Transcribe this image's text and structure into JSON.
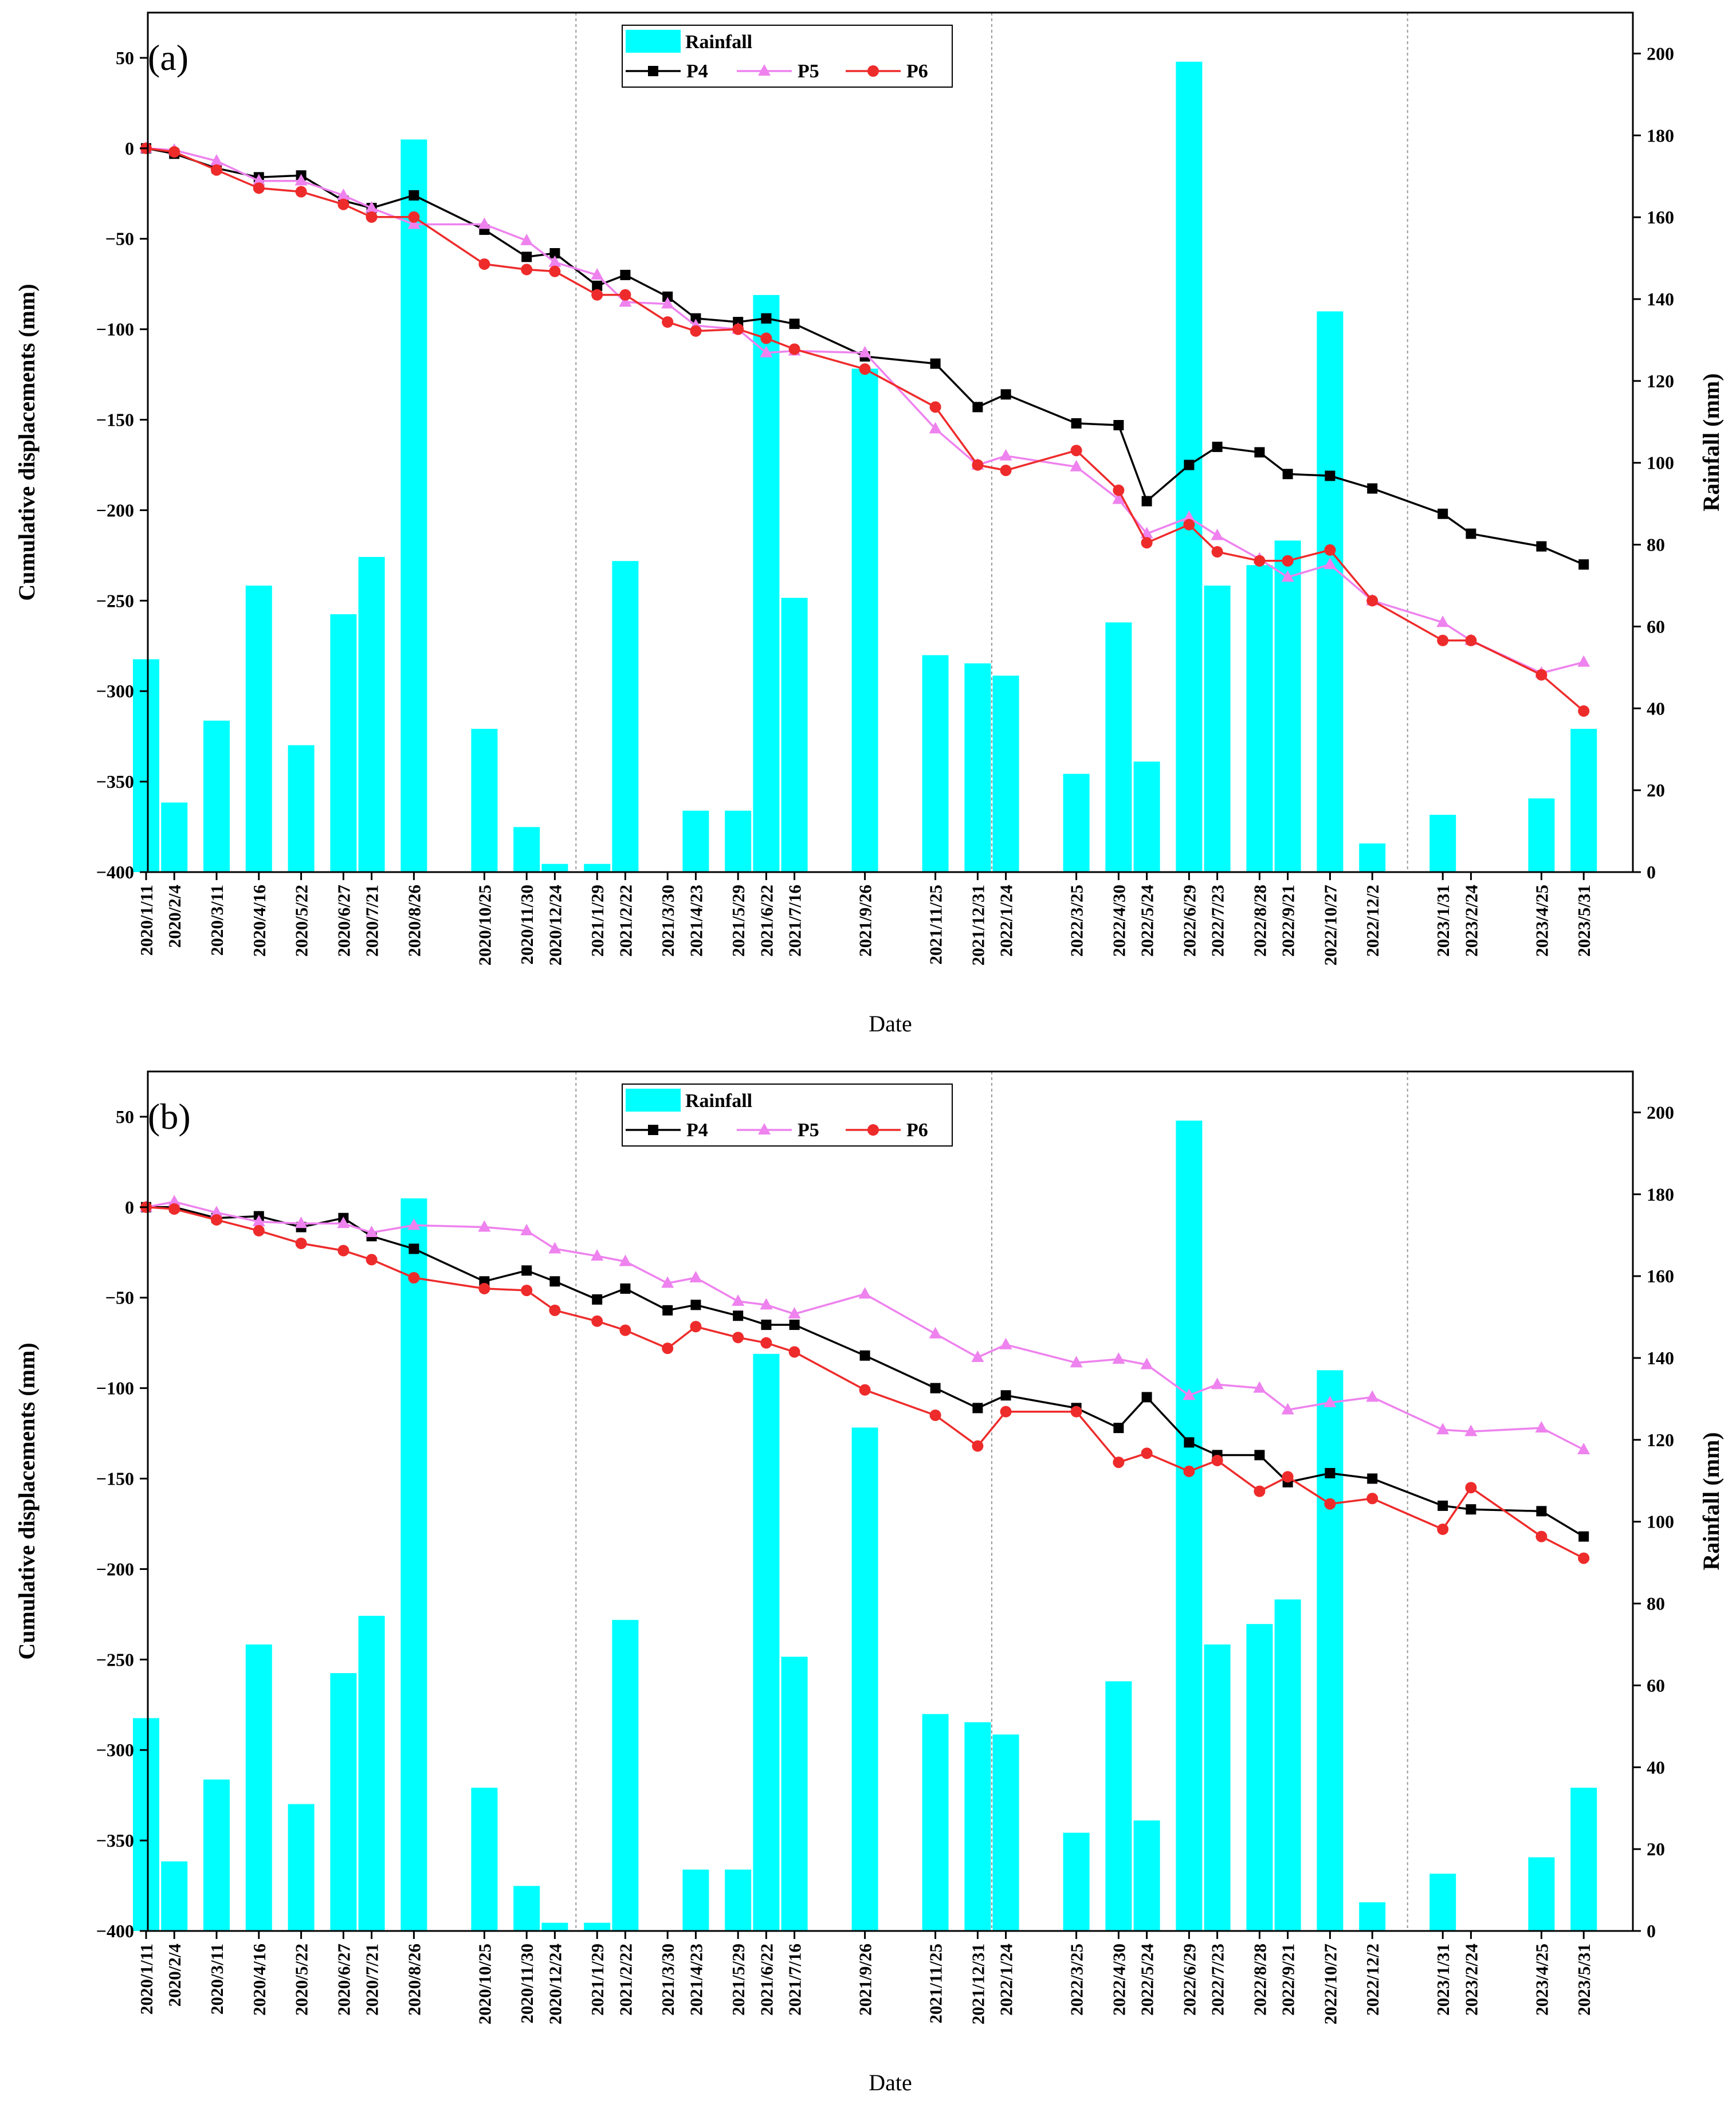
{
  "chart_data": [
    {
      "type": "bar+line",
      "panel_label": "(a)",
      "xlabel": "Date",
      "ylabel_left": "Cumulative displacements (mm)",
      "ylabel_right": "Rainfall (mm)",
      "ylim_left": [
        -400,
        75
      ],
      "ylim_right": [
        0,
        210
      ],
      "yticks_left": [
        50,
        0,
        -50,
        -100,
        -150,
        -200,
        -250,
        -300,
        -350,
        -400
      ],
      "yticks_right": [
        200,
        180,
        160,
        140,
        120,
        100,
        80,
        60,
        40,
        20,
        0
      ],
      "dates": [
        "2020/1/11",
        "2020/2/4",
        "2020/3/11",
        "2020/4/16",
        "2020/5/22",
        "2020/6/27",
        "2020/7/21",
        "2020/8/26",
        "2020/10/25",
        "2020/11/30",
        "2020/12/24",
        "2021/1/29",
        "2021/2/22",
        "2021/3/30",
        "2021/4/23",
        "2021/5/29",
        "2021/6/22",
        "2021/7/16",
        "2021/9/26",
        "2021/11/25",
        "2021/12/31",
        "2022/1/24",
        "2022/3/25",
        "2022/4/30",
        "2022/5/24",
        "2022/6/29",
        "2022/7/23",
        "2022/8/28",
        "2022/9/21",
        "2022/10/27",
        "2022/12/2",
        "2023/1/31",
        "2023/2/24",
        "2023/4/25",
        "2023/5/31"
      ],
      "date_positions": [
        0,
        1,
        2.5,
        4,
        5.5,
        7,
        8,
        9.5,
        12,
        13.5,
        14.5,
        16,
        17,
        18.5,
        19.5,
        21,
        22,
        23,
        25.5,
        28,
        29.5,
        30.5,
        33,
        34.5,
        35.5,
        37,
        38,
        39.5,
        40.5,
        42,
        43.5,
        46,
        47,
        49.5,
        51
      ],
      "rainfall": [
        52,
        17,
        37,
        70,
        31,
        63,
        77,
        179,
        35,
        11,
        2,
        2,
        76,
        0,
        15,
        15,
        141,
        67,
        123,
        53,
        51,
        48,
        24,
        61,
        27,
        198,
        70,
        75,
        81,
        137,
        7,
        14,
        0,
        18,
        35
      ],
      "separators": [
        15.25,
        30,
        44.75
      ],
      "series": [
        {
          "name": "P4",
          "color": "#000000",
          "marker": "square",
          "values": [
            0,
            -3,
            -11,
            -16,
            -15,
            -29,
            -33,
            -26,
            -45,
            -60,
            -58,
            -76,
            -70,
            -82,
            -94,
            -96,
            -94,
            -97,
            -115,
            -119,
            -143,
            -136,
            -152,
            -153,
            -195,
            -175,
            -165,
            -168,
            -180,
            -181,
            -188,
            -202,
            -213,
            -220,
            -230
          ]
        },
        {
          "name": "P5",
          "color": "#ee82ee",
          "marker": "triangle",
          "values": [
            0,
            -1,
            -7,
            -18,
            -18,
            -26,
            -33,
            -42,
            -42,
            -51,
            -63,
            -70,
            -85,
            -86,
            -98,
            -100,
            -113,
            -112,
            -113,
            -155,
            -175,
            -170,
            -176,
            -194,
            -213,
            -204,
            -214,
            -227,
            -237,
            -230,
            -250,
            -262,
            -272,
            -290,
            -284
          ]
        },
        {
          "name": "P6",
          "color": "#ee2b2b",
          "marker": "circle",
          "values": [
            0,
            -2,
            -12,
            -22,
            -24,
            -31,
            -38,
            -38,
            -64,
            -67,
            -68,
            -81,
            -81,
            -96,
            -101,
            -100,
            -105,
            -111,
            -122,
            -143,
            -175,
            -178,
            -167,
            -189,
            -218,
            -208,
            -223,
            -228,
            -228,
            -222,
            -250,
            -272,
            -272,
            -291,
            -311
          ]
        }
      ],
      "legend": {
        "placement": "top-center",
        "entries": [
          "Rainfall",
          "P4",
          "P5",
          "P6"
        ]
      },
      "colors": {
        "rainfall": "#00ffff",
        "p4": "#000000",
        "p5": "#ee82ee",
        "p6": "#ee2b2b",
        "separator": "#999999"
      }
    },
    {
      "type": "bar+line",
      "panel_label": "(b)",
      "xlabel": "Date",
      "ylabel_left": "Cumulative displacements (mm)",
      "ylabel_right": "Rainfall (mm)",
      "ylim_left": [
        -400,
        75
      ],
      "ylim_right": [
        0,
        210
      ],
      "yticks_left": [
        50,
        0,
        -50,
        -100,
        -150,
        -200,
        -250,
        -300,
        -350,
        -400
      ],
      "yticks_right": [
        200,
        180,
        160,
        140,
        120,
        100,
        80,
        60,
        40,
        20,
        0
      ],
      "dates": [
        "2020/1/11",
        "2020/2/4",
        "2020/3/11",
        "2020/4/16",
        "2020/5/22",
        "2020/6/27",
        "2020/7/21",
        "2020/8/26",
        "2020/10/25",
        "2020/11/30",
        "2020/12/24",
        "2021/1/29",
        "2021/2/22",
        "2021/3/30",
        "2021/4/23",
        "2021/5/29",
        "2021/6/22",
        "2021/7/16",
        "2021/9/26",
        "2021/11/25",
        "2021/12/31",
        "2022/1/24",
        "2022/3/25",
        "2022/4/30",
        "2022/5/24",
        "2022/6/29",
        "2022/7/23",
        "2022/8/28",
        "2022/9/21",
        "2022/10/27",
        "2022/12/2",
        "2023/1/31",
        "2023/2/24",
        "2023/4/25",
        "2023/5/31"
      ],
      "date_positions": [
        0,
        1,
        2.5,
        4,
        5.5,
        7,
        8,
        9.5,
        12,
        13.5,
        14.5,
        16,
        17,
        18.5,
        19.5,
        21,
        22,
        23,
        25.5,
        28,
        29.5,
        30.5,
        33,
        34.5,
        35.5,
        37,
        38,
        39.5,
        40.5,
        42,
        43.5,
        46,
        47,
        49.5,
        51
      ],
      "rainfall": [
        52,
        17,
        37,
        70,
        31,
        63,
        77,
        179,
        35,
        11,
        2,
        2,
        76,
        0,
        15,
        15,
        141,
        67,
        123,
        53,
        51,
        48,
        24,
        61,
        27,
        198,
        70,
        75,
        81,
        137,
        7,
        14,
        0,
        18,
        35
      ],
      "separators": [
        15.25,
        30,
        44.75
      ],
      "series": [
        {
          "name": "P4",
          "color": "#000000",
          "marker": "square",
          "values": [
            0,
            0,
            -6,
            -5,
            -11,
            -6,
            -16,
            -23,
            -41,
            -35,
            -41,
            -51,
            -45,
            -57,
            -54,
            -60,
            -65,
            -65,
            -82,
            -100,
            -111,
            -104,
            -111,
            -122,
            -105,
            -130,
            -137,
            -137,
            -152,
            -147,
            -150,
            -165,
            -167,
            -168,
            -182
          ]
        },
        {
          "name": "P5",
          "color": "#ee82ee",
          "marker": "triangle",
          "values": [
            0,
            3,
            -3,
            -8,
            -9,
            -9,
            -14,
            -10,
            -11,
            -13,
            -23,
            -27,
            -30,
            -42,
            -39,
            -52,
            -54,
            -59,
            -48,
            -70,
            -83,
            -76,
            -86,
            -84,
            -87,
            -104,
            -98,
            -100,
            -112,
            -108,
            -105,
            -123,
            -124,
            -122,
            -134
          ]
        },
        {
          "name": "P6",
          "color": "#ee2b2b",
          "marker": "circle",
          "values": [
            0,
            -1,
            -7,
            -13,
            -20,
            -24,
            -29,
            -39,
            -45,
            -46,
            -57,
            -63,
            -68,
            -78,
            -66,
            -72,
            -75,
            -80,
            -101,
            -115,
            -132,
            -113,
            -113,
            -141,
            -136,
            -146,
            -140,
            -157,
            -149,
            -164,
            -161,
            -178,
            -155,
            -182,
            -194
          ]
        }
      ],
      "legend": {
        "placement": "top-center",
        "entries": [
          "Rainfall",
          "P4",
          "P5",
          "P6"
        ]
      },
      "colors": {
        "rainfall": "#00ffff",
        "p4": "#000000",
        "p5": "#ee82ee",
        "p6": "#ee2b2b",
        "separator": "#999999"
      }
    }
  ]
}
